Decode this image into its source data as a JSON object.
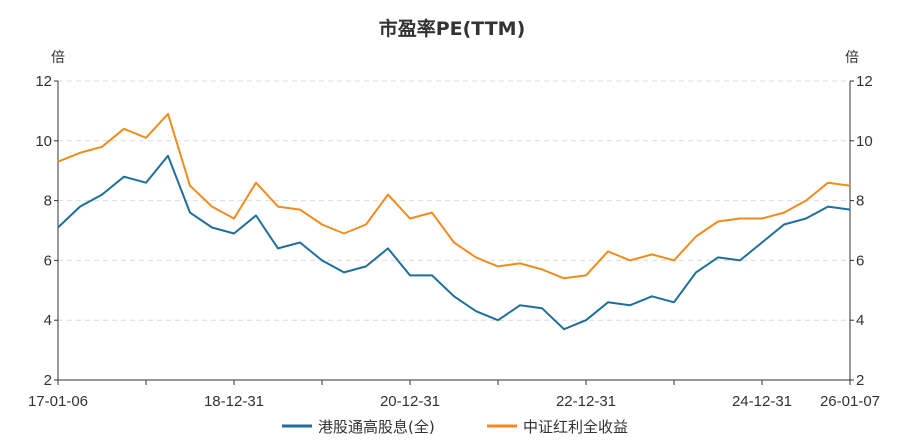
{
  "chart_data": {
    "type": "line",
    "title": "市盈率PE(TTM)",
    "ylabel_left": "倍",
    "ylabel_right": "倍",
    "ylim": [
      2,
      12
    ],
    "yticks": [
      "2",
      "4",
      "6",
      "8",
      "10",
      "12"
    ],
    "x_tick_labels": [
      "17-01-06",
      "18-12-31",
      "20-12-31",
      "22-12-31",
      "24-12-31",
      "26-01-07"
    ],
    "x": [
      "2017-01",
      "2017-04",
      "2017-07",
      "2017-10",
      "2018-01",
      "2018-04",
      "2018-07",
      "2018-10",
      "2019-01",
      "2019-04",
      "2019-07",
      "2019-10",
      "2020-01",
      "2020-04",
      "2020-07",
      "2020-10",
      "2021-01",
      "2021-04",
      "2021-07",
      "2021-10",
      "2022-01",
      "2022-04",
      "2022-07",
      "2022-10",
      "2023-01",
      "2023-04",
      "2023-07",
      "2023-10",
      "2024-01",
      "2024-04",
      "2024-07",
      "2024-10",
      "2025-01",
      "2025-04",
      "2025-07",
      "2025-10",
      "2026-01"
    ],
    "grid": true,
    "legend_position": "bottom",
    "series": [
      {
        "name": "港股通高股息(全)",
        "color": "#1f6e9c",
        "values": [
          7.1,
          7.8,
          8.2,
          8.8,
          8.6,
          9.5,
          7.6,
          7.1,
          6.9,
          7.5,
          6.4,
          6.6,
          6.0,
          5.6,
          5.8,
          6.4,
          5.5,
          5.5,
          4.8,
          4.3,
          4.0,
          4.5,
          4.4,
          3.7,
          4.0,
          4.6,
          4.5,
          4.8,
          4.6,
          5.6,
          6.1,
          6.0,
          6.6,
          7.2,
          7.4,
          7.8,
          7.7
        ]
      },
      {
        "name": "中证红利全收益",
        "color": "#f08c1e",
        "values": [
          9.3,
          9.6,
          9.8,
          10.4,
          10.1,
          10.9,
          8.5,
          7.8,
          7.4,
          8.6,
          7.8,
          7.7,
          7.2,
          6.9,
          7.2,
          8.2,
          7.4,
          7.6,
          6.6,
          6.1,
          5.8,
          5.9,
          5.7,
          5.4,
          5.5,
          6.3,
          6.0,
          6.2,
          6.0,
          6.8,
          7.3,
          7.4,
          7.4,
          7.6,
          8.0,
          8.6,
          8.5
        ]
      }
    ]
  }
}
